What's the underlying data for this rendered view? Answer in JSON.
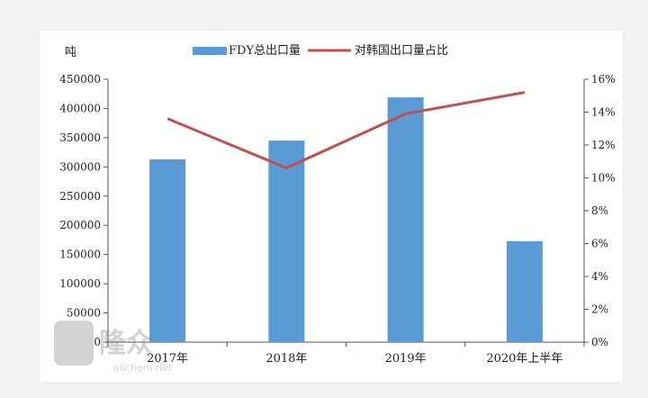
{
  "chart_data": {
    "type": "bar",
    "title": "",
    "y_unit_label": "吨",
    "categories": [
      "2017年",
      "2018年",
      "2019年",
      "2020年上半年"
    ],
    "series": [
      {
        "name": "FDY总出口量",
        "kind": "bar",
        "axis": "left",
        "color": "#5b9bd5",
        "values": [
          313000,
          345000,
          419000,
          173000
        ]
      },
      {
        "name": "对韩国出口量占比",
        "kind": "line",
        "axis": "right",
        "color": "#c0504d",
        "values": [
          13.6,
          10.6,
          13.9,
          15.2
        ]
      }
    ],
    "y_left": {
      "min": 0,
      "max": 450000,
      "ticks": [
        "0",
        "50000",
        "100000",
        "150000",
        "200000",
        "250000",
        "300000",
        "350000",
        "400000",
        "450000"
      ]
    },
    "y_right": {
      "min": 0,
      "max": 16,
      "unit": "%",
      "ticks": [
        "0%",
        "2%",
        "4%",
        "6%",
        "8%",
        "10%",
        "12%",
        "14%",
        "16%"
      ]
    },
    "legend_position": "top",
    "grid": false
  },
  "watermark": {
    "brand": "隆众",
    "url": "oilchem.net"
  }
}
